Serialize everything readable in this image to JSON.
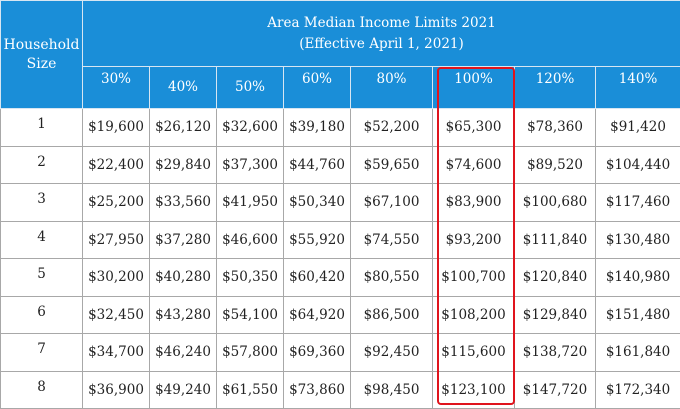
{
  "table": {
    "household_header": "Household Size",
    "title_line1": "Area Median Income Limits 2021",
    "title_line2": "(Effective April 1, 2021)",
    "percent_headers": [
      "30%",
      "40%",
      "50%",
      "60%",
      "80%",
      "100%",
      "120%",
      "140%"
    ],
    "highlighted_column": "100%",
    "highlight_color": "#e0141d",
    "header_color": "#1a8ed8",
    "rows": [
      {
        "size": "1",
        "values": [
          "$19,600",
          "$26,120",
          "$32,600",
          "$39,180",
          "$52,200",
          "$65,300",
          "$78,360",
          "$91,420"
        ]
      },
      {
        "size": "2",
        "values": [
          "$22,400",
          "$29,840",
          "$37,300",
          "$44,760",
          "$59,650",
          "$74,600",
          "$89,520",
          "$104,440"
        ]
      },
      {
        "size": "3",
        "values": [
          "$25,200",
          "$33,560",
          "$41,950",
          "$50,340",
          "$67,100",
          "$83,900",
          "$100,680",
          "$117,460"
        ]
      },
      {
        "size": "4",
        "values": [
          "$27,950",
          "$37,280",
          "$46,600",
          "$55,920",
          "$74,550",
          "$93,200",
          "$111,840",
          "$130,480"
        ]
      },
      {
        "size": "5",
        "values": [
          "$30,200",
          "$40,280",
          "$50,350",
          "$60,420",
          "$80,550",
          "$100,700",
          "$120,840",
          "$140,980"
        ]
      },
      {
        "size": "6",
        "values": [
          "$32,450",
          "$43,280",
          "$54,100",
          "$64,920",
          "$86,500",
          "$108,200",
          "$129,840",
          "$151,480"
        ]
      },
      {
        "size": "7",
        "values": [
          "$34,700",
          "$46,240",
          "$57,800",
          "$69,360",
          "$92,450",
          "$115,600",
          "$138,720",
          "$161,840"
        ]
      },
      {
        "size": "8",
        "values": [
          "$36,900",
          "$49,240",
          "$61,550",
          "$73,860",
          "$98,450",
          "$123,100",
          "$147,720",
          "$172,340"
        ]
      }
    ]
  }
}
